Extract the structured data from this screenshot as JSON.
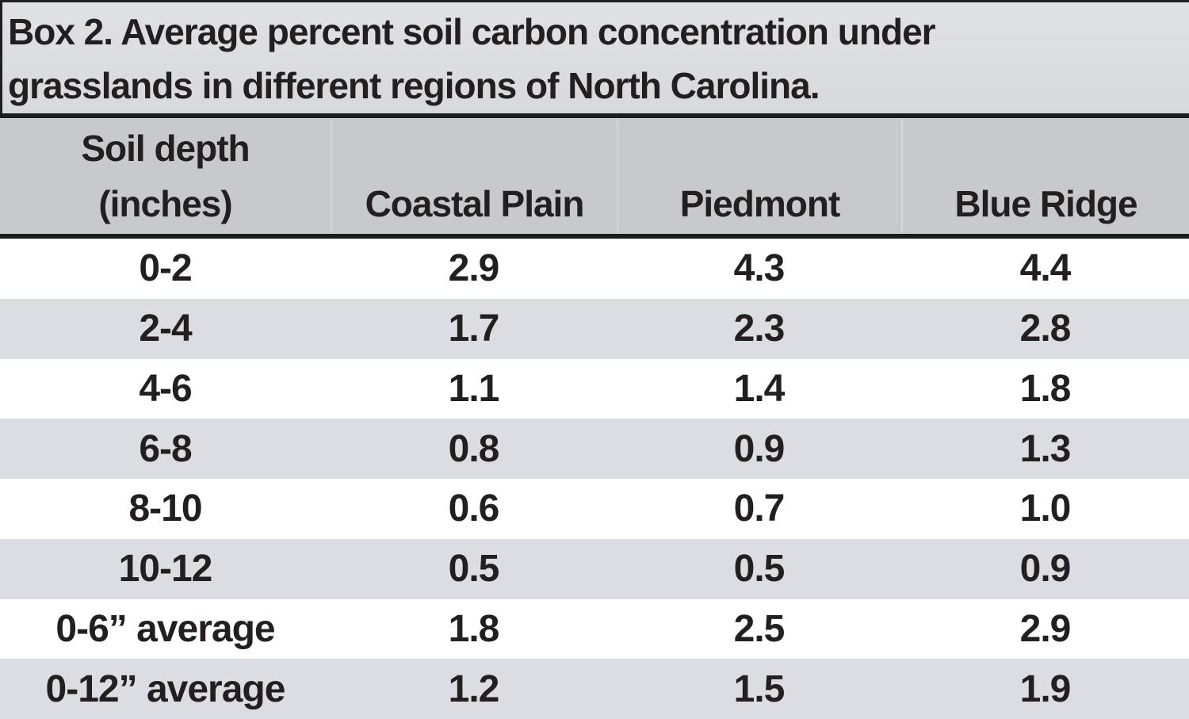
{
  "chart_data": {
    "type": "table",
    "title": "Box 2. Average percent soil carbon concentration under grasslands in different regions of North Carolina.",
    "title_lines": [
      "Box 2. Average percent soil carbon concentration under",
      "grasslands in different regions of North Carolina."
    ],
    "columns": [
      "Soil depth (inches)",
      "Coastal Plain",
      "Piedmont",
      "Blue Ridge"
    ],
    "header": {
      "depth_line1": "Soil depth",
      "depth_line2": "(inches)",
      "coastal_plain": "Coastal Plain",
      "piedmont": "Piedmont",
      "blue_ridge": "Blue Ridge"
    },
    "rows": [
      {
        "depth": "0-2",
        "coastal_plain": "2.9",
        "piedmont": "4.3",
        "blue_ridge": "4.4"
      },
      {
        "depth": "2-4",
        "coastal_plain": "1.7",
        "piedmont": "2.3",
        "blue_ridge": "2.8"
      },
      {
        "depth": "4-6",
        "coastal_plain": "1.1",
        "piedmont": "1.4",
        "blue_ridge": "1.8"
      },
      {
        "depth": "6-8",
        "coastal_plain": "0.8",
        "piedmont": "0.9",
        "blue_ridge": "1.3"
      },
      {
        "depth": "8-10",
        "coastal_plain": "0.6",
        "piedmont": "0.7",
        "blue_ridge": "1.0"
      },
      {
        "depth": "10-12",
        "coastal_plain": "0.5",
        "piedmont": "0.5",
        "blue_ridge": "0.9"
      },
      {
        "depth": "0-6” average",
        "coastal_plain": "1.8",
        "piedmont": "2.5",
        "blue_ridge": "2.9"
      },
      {
        "depth": "0-12” average",
        "coastal_plain": "1.2",
        "piedmont": "1.5",
        "blue_ridge": "1.9"
      }
    ],
    "units": "percent soil carbon",
    "layout": {
      "row_striping": "white and light gray alternating",
      "header_background": "#c8c9cb",
      "title_background": "#dbdcde"
    }
  },
  "colors": {
    "title_bg": "#dbdcde",
    "header_bg": "#c8c9cb",
    "row_bg": "#ffffff",
    "row_alt_bg": "#dcdde1",
    "rule": "#1c1c1c",
    "text": "#231f20"
  }
}
